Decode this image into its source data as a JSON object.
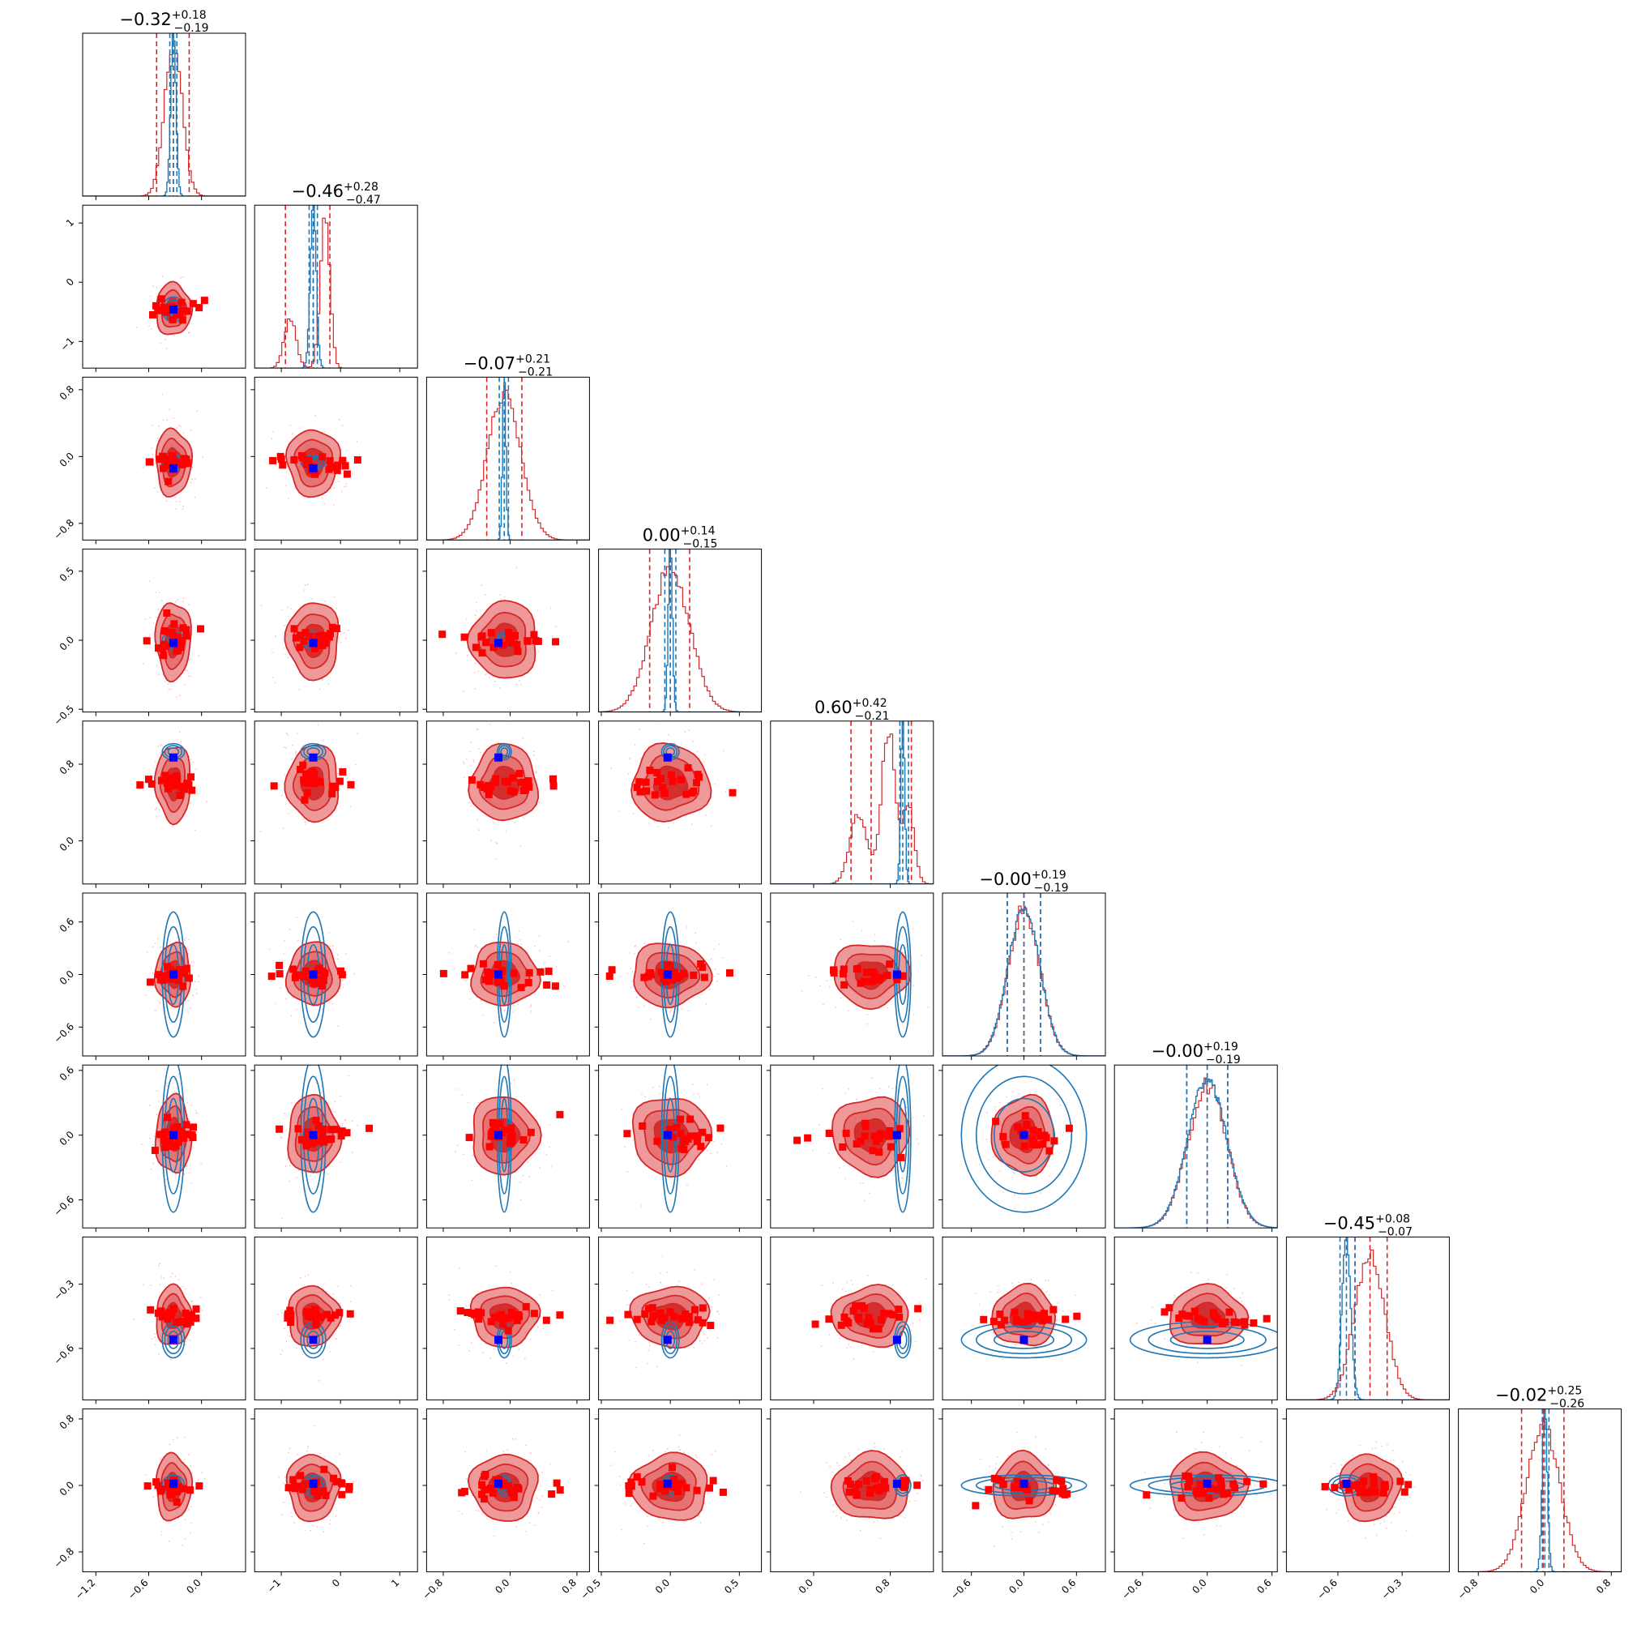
{
  "chart_data": {
    "type": "corner",
    "n_params": 9,
    "colors": {
      "posterior_a": "#d62728",
      "posterior_b": "#1f77b4",
      "samples": "#ff0000",
      "truth_marker": "#0000ff"
    },
    "titles": [
      {
        "median": "−0.32",
        "plus": "+0.18",
        "minus": "−0.19"
      },
      {
        "median": "−0.46",
        "plus": "+0.28",
        "minus": "−0.47"
      },
      {
        "median": "−0.07",
        "plus": "+0.21",
        "minus": "−0.21"
      },
      {
        "median": "0.00",
        "plus": "+0.14",
        "minus": "−0.15"
      },
      {
        "median": "0.60",
        "plus": "+0.42",
        "minus": "−0.21"
      },
      {
        "median": "−0.00",
        "plus": "+0.19",
        "minus": "−0.19"
      },
      {
        "median": "−0.00",
        "plus": "+0.19",
        "minus": "−0.19"
      },
      {
        "median": "−0.45",
        "plus": "+0.08",
        "minus": "−0.07"
      },
      {
        "median": "−0.02",
        "plus": "+0.25",
        "minus": "−0.26"
      }
    ],
    "params": [
      {
        "range": [
          -1.35,
          0.5
        ],
        "ticks": [
          -1.2,
          -0.6,
          0.0
        ],
        "tick_labels": [
          "−1.2",
          "−0.6",
          "0.0"
        ],
        "median": -0.32,
        "lo": -0.51,
        "hi": -0.14,
        "truth": -0.32,
        "b_mean": -0.32,
        "b_sd": 0.03,
        "a_sd": 0.1,
        "b_lo": -0.36,
        "b_hi": -0.28
      },
      {
        "range": [
          -1.45,
          1.3
        ],
        "ticks": [
          -1,
          0,
          1
        ],
        "tick_labels": [
          "−1",
          "0",
          "1"
        ],
        "median": -0.46,
        "lo": -0.93,
        "hi": -0.18,
        "truth": -0.46,
        "b_mean": -0.46,
        "b_sd": 0.05,
        "a_sd": 0.22,
        "b_lo": -0.53,
        "b_hi": -0.39
      },
      {
        "range": [
          -1.0,
          0.95
        ],
        "ticks": [
          -0.8,
          0.0,
          0.8
        ],
        "tick_labels": [
          "−0.8",
          "0.0",
          "0.8"
        ],
        "median": -0.07,
        "lo": -0.28,
        "hi": 0.14,
        "truth": -0.14,
        "b_mean": -0.07,
        "b_sd": 0.02,
        "a_sd": 0.2,
        "b_lo": -0.13,
        "b_hi": -0.02
      },
      {
        "range": [
          -0.52,
          0.66
        ],
        "ticks": [
          -0.5,
          0.0,
          0.5
        ],
        "tick_labels": [
          "−0.5",
          "0.0",
          "0.5"
        ],
        "median": 0.0,
        "lo": -0.15,
        "hi": 0.14,
        "truth": -0.02,
        "b_mean": 0.0,
        "b_sd": 0.015,
        "a_sd": 0.14,
        "b_lo": -0.04,
        "b_hi": 0.04
      },
      {
        "range": [
          -0.45,
          1.25
        ],
        "ticks": [
          0.0,
          0.8
        ],
        "tick_labels": [
          "0.0",
          "0.8"
        ],
        "median": 0.6,
        "lo": 0.39,
        "hi": 1.02,
        "truth": 0.87,
        "b_mean": 0.93,
        "b_sd": 0.02,
        "a_sd": 0.2,
        "b_lo": 0.9,
        "b_hi": 0.99
      },
      {
        "range": [
          -0.93,
          0.93
        ],
        "ticks": [
          -0.6,
          0.0,
          0.6
        ],
        "tick_labels": [
          "−0.6",
          "0.0",
          "0.6"
        ],
        "median": 0.0,
        "lo": -0.19,
        "hi": 0.19,
        "truth": 0.0,
        "b_mean": 0.0,
        "b_sd": 0.17,
        "a_sd": 0.18,
        "b_lo": -0.19,
        "b_hi": 0.19
      },
      {
        "range": [
          -0.86,
          0.65
        ],
        "ticks": [
          -0.6,
          0.0,
          0.6
        ],
        "tick_labels": [
          "−0.6",
          "0.0",
          "0.6"
        ],
        "median": 0.0,
        "lo": -0.19,
        "hi": 0.19,
        "truth": 0.0,
        "b_mean": 0.0,
        "b_sd": 0.17,
        "a_sd": 0.18,
        "b_lo": -0.19,
        "b_hi": 0.19
      },
      {
        "range": [
          -0.84,
          -0.08
        ],
        "ticks": [
          -0.6,
          -0.3
        ],
        "tick_labels": [
          "−0.6",
          "−0.3"
        ],
        "median": -0.45,
        "lo": -0.52,
        "hi": -0.37,
        "truth": -0.56,
        "b_mean": -0.56,
        "b_sd": 0.02,
        "a_sd": 0.07,
        "b_lo": -0.59,
        "b_hi": -0.52
      },
      {
        "range": [
          -1.04,
          0.92
        ],
        "ticks": [
          -0.8,
          0.0,
          0.8
        ],
        "tick_labels": [
          "−0.8",
          "0.0",
          "0.8"
        ],
        "median": -0.02,
        "lo": -0.28,
        "hi": 0.23,
        "truth": 0.02,
        "b_mean": 0.0,
        "b_sd": 0.03,
        "a_sd": 0.2,
        "b_lo": -0.03,
        "b_hi": 0.05
      }
    ]
  }
}
